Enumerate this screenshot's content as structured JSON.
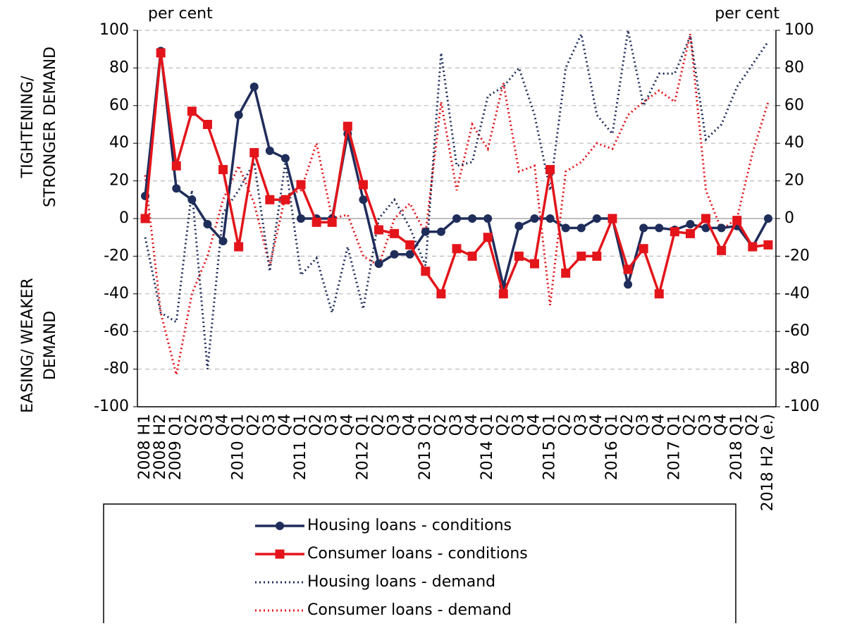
{
  "chart_data": {
    "type": "line",
    "left_unit": "per cent",
    "right_unit": "per cent",
    "y_label_upper": [
      "TIGHTENING/",
      "STRONGER DEMAND"
    ],
    "y_label_lower": [
      "EASING/  WEAKER",
      "DEMAND"
    ],
    "categories": [
      "2008 H1",
      "2008 H2",
      "2009 Q1",
      "Q2",
      "Q3",
      "Q4",
      "2010 Q1",
      "Q2",
      "Q3",
      "Q4",
      "2011 Q1",
      "Q2",
      "Q3",
      "Q4",
      "2012 Q1",
      "Q2",
      "Q3",
      "Q4",
      "2013 Q1",
      "Q2",
      "Q3",
      "Q4",
      "2014 Q1",
      "Q2",
      "Q3",
      "Q4",
      "2015 Q1",
      "Q2",
      "Q3",
      "Q4",
      "2016 Q1",
      "Q2",
      "Q3",
      "Q4",
      "2017 Q1",
      "Q2",
      "Q3",
      "Q4",
      "2018 Q1",
      "Q2",
      "2018 H2 (e.)"
    ],
    "series": [
      {
        "name": "Housing loans - conditions",
        "color": "#1f2d5a",
        "marker": "circle",
        "dotted": false,
        "values": [
          12,
          89,
          16,
          10,
          -3,
          -12,
          55,
          70,
          36,
          32,
          0,
          0,
          0,
          45,
          10,
          -24,
          -19,
          -19,
          -7,
          -7,
          0,
          0,
          0,
          -36,
          -4,
          0,
          0,
          -5,
          -5,
          0,
          0,
          -35,
          -5,
          -5,
          -6,
          -3,
          -5,
          -5,
          -4,
          -15,
          0
        ]
      },
      {
        "name": "Consumer loans - conditions",
        "color": "#e3151b",
        "marker": "square",
        "dotted": false,
        "values": [
          0,
          88,
          28,
          57,
          50,
          26,
          -15,
          35,
          10,
          10,
          18,
          -2,
          -2,
          49,
          18,
          -6,
          -8,
          -14,
          -28,
          -40,
          -16,
          -20,
          -10,
          -40,
          -20,
          -24,
          26,
          -29,
          -20,
          -20,
          0,
          -27,
          -16,
          -40,
          -7,
          -8,
          0,
          -17,
          -1,
          -15,
          -14
        ]
      },
      {
        "name": "Housing loans - demand",
        "color": "#1f2d5a",
        "marker": null,
        "dotted": true,
        "values": [
          -10,
          -50,
          -55,
          15,
          -80,
          3,
          15,
          30,
          -28,
          30,
          -30,
          -21,
          -50,
          -15,
          -48,
          0,
          10,
          -5,
          -25,
          88,
          28,
          30,
          65,
          70,
          80,
          55,
          15,
          80,
          98,
          55,
          45,
          100,
          60,
          77,
          77,
          97,
          42,
          50,
          70,
          82,
          94
        ]
      },
      {
        "name": "Consumer loans - demand",
        "color": "#e3151b",
        "marker": null,
        "dotted": true,
        "values": [
          23,
          -50,
          -83,
          -40,
          -20,
          10,
          28,
          8,
          -25,
          12,
          15,
          40,
          0,
          2,
          -20,
          -25,
          0,
          8,
          -8,
          62,
          15,
          50,
          37,
          72,
          25,
          28,
          -46,
          25,
          30,
          40,
          37,
          55,
          62,
          68,
          62,
          98,
          15,
          -6,
          0,
          35,
          62
        ]
      }
    ],
    "ylim": [
      -100,
      100
    ],
    "yticks": [
      -100,
      -80,
      -60,
      -40,
      -20,
      0,
      20,
      40,
      60,
      80,
      100
    ],
    "y2lim": [
      -100,
      100
    ],
    "y2ticks": [
      -100,
      -80,
      -60,
      -40,
      -20,
      0,
      20,
      40,
      60,
      80,
      100
    ],
    "grid": true
  }
}
